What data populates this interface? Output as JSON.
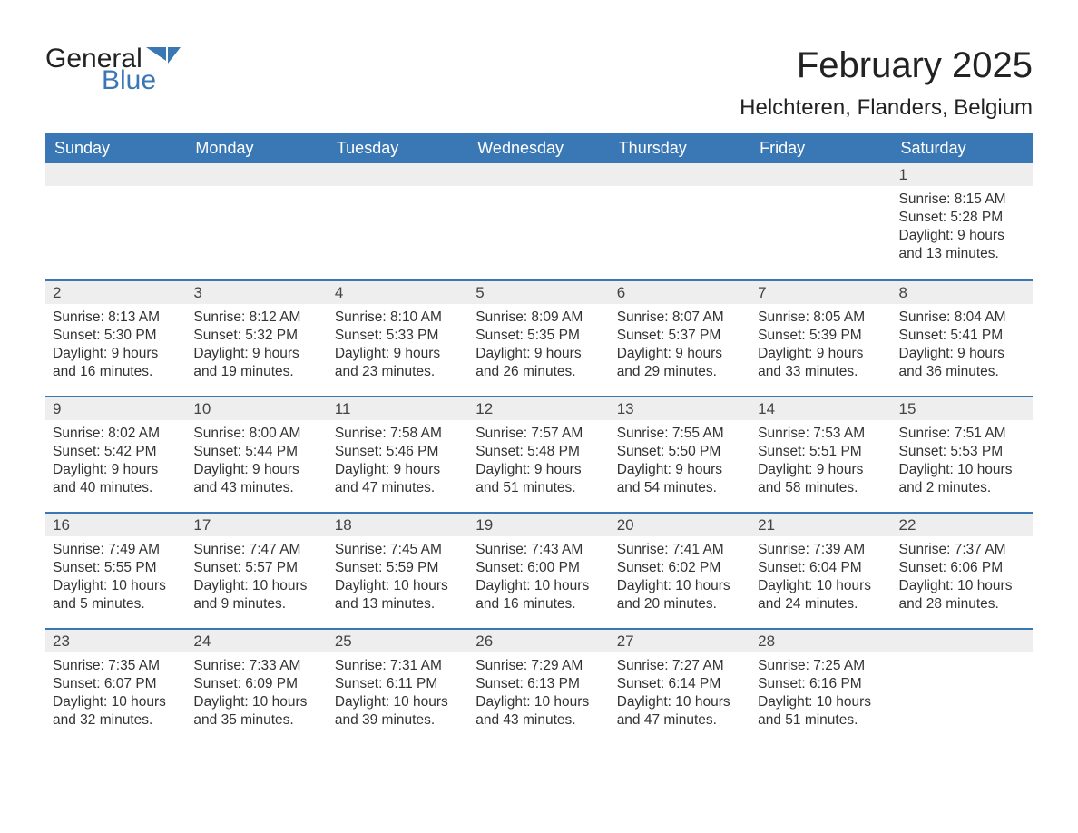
{
  "logo": {
    "text1": "General",
    "text2": "Blue",
    "shape_color": "#3a78b5"
  },
  "title": "February 2025",
  "subtitle": "Helchteren, Flanders, Belgium",
  "colors": {
    "header_bg": "#3a78b5",
    "header_text": "#ffffff",
    "gray_bar": "#eeeeee",
    "border": "#3a78b5",
    "text": "#333333",
    "background": "#ffffff"
  },
  "day_headers": [
    "Sunday",
    "Monday",
    "Tuesday",
    "Wednesday",
    "Thursday",
    "Friday",
    "Saturday"
  ],
  "weeks": [
    [
      null,
      null,
      null,
      null,
      null,
      null,
      {
        "n": "1",
        "sunrise": "Sunrise: 8:15 AM",
        "sunset": "Sunset: 5:28 PM",
        "dl1": "Daylight: 9 hours",
        "dl2": "and 13 minutes."
      }
    ],
    [
      {
        "n": "2",
        "sunrise": "Sunrise: 8:13 AM",
        "sunset": "Sunset: 5:30 PM",
        "dl1": "Daylight: 9 hours",
        "dl2": "and 16 minutes."
      },
      {
        "n": "3",
        "sunrise": "Sunrise: 8:12 AM",
        "sunset": "Sunset: 5:32 PM",
        "dl1": "Daylight: 9 hours",
        "dl2": "and 19 minutes."
      },
      {
        "n": "4",
        "sunrise": "Sunrise: 8:10 AM",
        "sunset": "Sunset: 5:33 PM",
        "dl1": "Daylight: 9 hours",
        "dl2": "and 23 minutes."
      },
      {
        "n": "5",
        "sunrise": "Sunrise: 8:09 AM",
        "sunset": "Sunset: 5:35 PM",
        "dl1": "Daylight: 9 hours",
        "dl2": "and 26 minutes."
      },
      {
        "n": "6",
        "sunrise": "Sunrise: 8:07 AM",
        "sunset": "Sunset: 5:37 PM",
        "dl1": "Daylight: 9 hours",
        "dl2": "and 29 minutes."
      },
      {
        "n": "7",
        "sunrise": "Sunrise: 8:05 AM",
        "sunset": "Sunset: 5:39 PM",
        "dl1": "Daylight: 9 hours",
        "dl2": "and 33 minutes."
      },
      {
        "n": "8",
        "sunrise": "Sunrise: 8:04 AM",
        "sunset": "Sunset: 5:41 PM",
        "dl1": "Daylight: 9 hours",
        "dl2": "and 36 minutes."
      }
    ],
    [
      {
        "n": "9",
        "sunrise": "Sunrise: 8:02 AM",
        "sunset": "Sunset: 5:42 PM",
        "dl1": "Daylight: 9 hours",
        "dl2": "and 40 minutes."
      },
      {
        "n": "10",
        "sunrise": "Sunrise: 8:00 AM",
        "sunset": "Sunset: 5:44 PM",
        "dl1": "Daylight: 9 hours",
        "dl2": "and 43 minutes."
      },
      {
        "n": "11",
        "sunrise": "Sunrise: 7:58 AM",
        "sunset": "Sunset: 5:46 PM",
        "dl1": "Daylight: 9 hours",
        "dl2": "and 47 minutes."
      },
      {
        "n": "12",
        "sunrise": "Sunrise: 7:57 AM",
        "sunset": "Sunset: 5:48 PM",
        "dl1": "Daylight: 9 hours",
        "dl2": "and 51 minutes."
      },
      {
        "n": "13",
        "sunrise": "Sunrise: 7:55 AM",
        "sunset": "Sunset: 5:50 PM",
        "dl1": "Daylight: 9 hours",
        "dl2": "and 54 minutes."
      },
      {
        "n": "14",
        "sunrise": "Sunrise: 7:53 AM",
        "sunset": "Sunset: 5:51 PM",
        "dl1": "Daylight: 9 hours",
        "dl2": "and 58 minutes."
      },
      {
        "n": "15",
        "sunrise": "Sunrise: 7:51 AM",
        "sunset": "Sunset: 5:53 PM",
        "dl1": "Daylight: 10 hours",
        "dl2": "and 2 minutes."
      }
    ],
    [
      {
        "n": "16",
        "sunrise": "Sunrise: 7:49 AM",
        "sunset": "Sunset: 5:55 PM",
        "dl1": "Daylight: 10 hours",
        "dl2": "and 5 minutes."
      },
      {
        "n": "17",
        "sunrise": "Sunrise: 7:47 AM",
        "sunset": "Sunset: 5:57 PM",
        "dl1": "Daylight: 10 hours",
        "dl2": "and 9 minutes."
      },
      {
        "n": "18",
        "sunrise": "Sunrise: 7:45 AM",
        "sunset": "Sunset: 5:59 PM",
        "dl1": "Daylight: 10 hours",
        "dl2": "and 13 minutes."
      },
      {
        "n": "19",
        "sunrise": "Sunrise: 7:43 AM",
        "sunset": "Sunset: 6:00 PM",
        "dl1": "Daylight: 10 hours",
        "dl2": "and 16 minutes."
      },
      {
        "n": "20",
        "sunrise": "Sunrise: 7:41 AM",
        "sunset": "Sunset: 6:02 PM",
        "dl1": "Daylight: 10 hours",
        "dl2": "and 20 minutes."
      },
      {
        "n": "21",
        "sunrise": "Sunrise: 7:39 AM",
        "sunset": "Sunset: 6:04 PM",
        "dl1": "Daylight: 10 hours",
        "dl2": "and 24 minutes."
      },
      {
        "n": "22",
        "sunrise": "Sunrise: 7:37 AM",
        "sunset": "Sunset: 6:06 PM",
        "dl1": "Daylight: 10 hours",
        "dl2": "and 28 minutes."
      }
    ],
    [
      {
        "n": "23",
        "sunrise": "Sunrise: 7:35 AM",
        "sunset": "Sunset: 6:07 PM",
        "dl1": "Daylight: 10 hours",
        "dl2": "and 32 minutes."
      },
      {
        "n": "24",
        "sunrise": "Sunrise: 7:33 AM",
        "sunset": "Sunset: 6:09 PM",
        "dl1": "Daylight: 10 hours",
        "dl2": "and 35 minutes."
      },
      {
        "n": "25",
        "sunrise": "Sunrise: 7:31 AM",
        "sunset": "Sunset: 6:11 PM",
        "dl1": "Daylight: 10 hours",
        "dl2": "and 39 minutes."
      },
      {
        "n": "26",
        "sunrise": "Sunrise: 7:29 AM",
        "sunset": "Sunset: 6:13 PM",
        "dl1": "Daylight: 10 hours",
        "dl2": "and 43 minutes."
      },
      {
        "n": "27",
        "sunrise": "Sunrise: 7:27 AM",
        "sunset": "Sunset: 6:14 PM",
        "dl1": "Daylight: 10 hours",
        "dl2": "and 47 minutes."
      },
      {
        "n": "28",
        "sunrise": "Sunrise: 7:25 AM",
        "sunset": "Sunset: 6:16 PM",
        "dl1": "Daylight: 10 hours",
        "dl2": "and 51 minutes."
      },
      null
    ]
  ]
}
